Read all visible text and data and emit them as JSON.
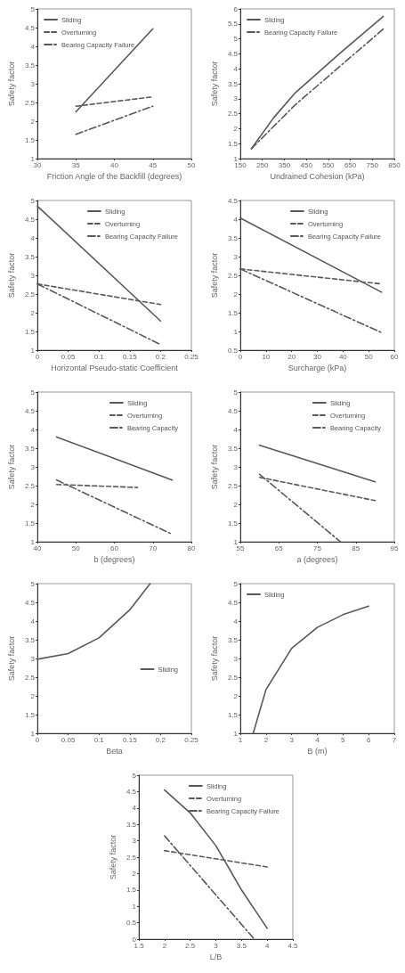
{
  "chart_data": [
    {
      "type": "line",
      "xlabel": "Friction Angle of the Backfill (degrees)",
      "ylabel": "Safety factor",
      "xlim": [
        30,
        50
      ],
      "xticks": [
        30,
        35,
        40,
        45,
        50
      ],
      "ylim": [
        1,
        5
      ],
      "yticks": [
        1,
        1.5,
        2,
        2.5,
        3,
        3.5,
        4,
        4.5,
        5
      ],
      "legend": "top left",
      "grid": false,
      "marker": "none",
      "series": [
        {
          "name": "Sliding",
          "color": "#595959",
          "line_style": "solid",
          "x": [
            35,
            45
          ],
          "values": [
            2.25,
            4.47
          ]
        },
        {
          "name": "Overturning",
          "color": "#595959",
          "line_style": "dashed",
          "x": [
            35,
            45
          ],
          "values": [
            2.4,
            2.65
          ]
        },
        {
          "name": "Bearing Capacity Failure",
          "color": "#595959",
          "line_style": "dotted",
          "x": [
            35,
            45
          ],
          "values": [
            1.65,
            2.4
          ]
        }
      ]
    },
    {
      "type": "line",
      "xlabel": "Undrained Cohesion (kPa)",
      "ylabel": "Safety factor",
      "xlim": [
        150,
        850
      ],
      "xticks": [
        150,
        250,
        350,
        450,
        550,
        650,
        750,
        850
      ],
      "ylim": [
        1,
        6
      ],
      "yticks": [
        1,
        1.5,
        2,
        2.5,
        3,
        3.5,
        4,
        4.5,
        5,
        5.5,
        6
      ],
      "legend": "top left",
      "grid": false,
      "marker": "none",
      "series": [
        {
          "name": "Sliding",
          "color": "#595959",
          "line_style": "solid",
          "x": [
            200,
            300,
            400,
            600,
            800
          ],
          "values": [
            1.33,
            2.35,
            3.2,
            4.5,
            5.75
          ]
        },
        {
          "name": "Bearing Capacity Failure",
          "color": "#595959",
          "line_style": "dotted",
          "x": [
            200,
            400,
            800
          ],
          "values": [
            1.33,
            2.8,
            5.33
          ]
        }
      ]
    },
    {
      "type": "line",
      "xlabel": "Horizontal Pseudo-static Coefficient",
      "ylabel": "Safety factor",
      "xlim": [
        0,
        0.25
      ],
      "xticks": [
        0,
        0.05,
        0.1,
        0.15,
        0.2,
        0.25
      ],
      "ylim": [
        1,
        5
      ],
      "yticks": [
        1,
        1.5,
        2,
        2.5,
        3,
        3.5,
        4,
        4.5,
        5
      ],
      "legend": "top right",
      "grid": false,
      "marker": "none",
      "series": [
        {
          "name": "Sliding",
          "color": "#595959",
          "line_style": "solid",
          "x": [
            0,
            0.2
          ],
          "values": [
            4.85,
            1.78
          ]
        },
        {
          "name": "Overturning",
          "color": "#595959",
          "line_style": "dashed",
          "x": [
            0,
            0.2
          ],
          "values": [
            2.77,
            2.22
          ]
        },
        {
          "name": "Bearing Capacity Failure",
          "color": "#595959",
          "line_style": "dotted",
          "x": [
            0,
            0.2
          ],
          "values": [
            2.77,
            1.15
          ]
        }
      ]
    },
    {
      "type": "line",
      "xlabel": "Surcharge (kPa)",
      "ylabel": "Safety factor",
      "xlim": [
        0,
        60
      ],
      "xticks": [
        0,
        10,
        20,
        30,
        40,
        50,
        60
      ],
      "ylim": [
        0.5,
        4.5
      ],
      "yticks": [
        0.5,
        1,
        1.5,
        2,
        2.5,
        3,
        3.5,
        4,
        4.5
      ],
      "legend": "top right",
      "grid": false,
      "marker": "none",
      "series": [
        {
          "name": "Sliding",
          "color": "#595959",
          "line_style": "solid",
          "x": [
            0,
            55
          ],
          "values": [
            4.03,
            2.05
          ]
        },
        {
          "name": "Overturning",
          "color": "#595959",
          "line_style": "dashed",
          "x": [
            0,
            55
          ],
          "values": [
            2.67,
            2.27
          ]
        },
        {
          "name": "Bearing Capacity Failure",
          "color": "#595959",
          "line_style": "dotted",
          "x": [
            0,
            55
          ],
          "values": [
            2.67,
            0.97
          ]
        }
      ]
    },
    {
      "type": "line",
      "xlabel": "b (degrees)",
      "ylabel": "Safety factor",
      "xlim": [
        40,
        80
      ],
      "xticks": [
        40,
        50,
        60,
        70,
        80
      ],
      "ylim": [
        1,
        5
      ],
      "yticks": [
        1,
        1.5,
        2,
        2.5,
        3,
        3.5,
        4,
        4.5,
        5
      ],
      "legend": "top right",
      "grid": false,
      "marker": "none",
      "series": [
        {
          "name": "Sliding",
          "color": "#595959",
          "line_style": "solid",
          "x": [
            45,
            75
          ],
          "values": [
            3.8,
            2.65
          ]
        },
        {
          "name": "Overturning",
          "color": "#595959",
          "line_style": "dashed",
          "x": [
            45,
            66
          ],
          "values": [
            2.53,
            2.45
          ]
        },
        {
          "name": "Bearing Capacity",
          "color": "#595959",
          "line_style": "dotted",
          "x": [
            45,
            75
          ],
          "values": [
            2.65,
            1.2
          ]
        }
      ]
    },
    {
      "type": "line",
      "xlabel": "a (degrees)",
      "ylabel": "Safety factor",
      "xlim": [
        55,
        95
      ],
      "xticks": [
        55,
        65,
        75,
        85,
        95
      ],
      "ylim": [
        1,
        5
      ],
      "yticks": [
        1,
        1.5,
        2,
        2.5,
        3,
        3.5,
        4,
        4.5,
        5
      ],
      "legend": "top right",
      "grid": false,
      "marker": "none",
      "series": [
        {
          "name": "Sliding",
          "color": "#595959",
          "line_style": "solid",
          "x": [
            60,
            90
          ],
          "values": [
            3.58,
            2.6
          ]
        },
        {
          "name": "Overturning",
          "color": "#595959",
          "line_style": "dashed",
          "x": [
            60,
            90
          ],
          "values": [
            2.72,
            2.1
          ]
        },
        {
          "name": "Bearing Capacity",
          "color": "#595959",
          "line_style": "dotted",
          "x": [
            60,
            81
          ],
          "values": [
            2.8,
            1.0
          ]
        }
      ]
    },
    {
      "type": "line",
      "xlabel": "Beta",
      "ylabel": "Safety factor",
      "xlim": [
        0,
        0.25
      ],
      "xticks": [
        0,
        0.05,
        0.1,
        0.15,
        0.2,
        0.25
      ],
      "ylim": [
        1,
        5
      ],
      "yticks": [
        1,
        1.5,
        2,
        2.5,
        3,
        3.5,
        4,
        4.5,
        5
      ],
      "legend": "right",
      "grid": false,
      "marker": "none",
      "series": [
        {
          "name": "Sliding",
          "color": "#595959",
          "line_style": "solid",
          "x": [
            0,
            0.05,
            0.1,
            0.15,
            0.183
          ],
          "values": [
            2.98,
            3.13,
            3.55,
            4.3,
            5
          ]
        }
      ]
    },
    {
      "type": "line",
      "xlabel": "B (m)",
      "ylabel": "Safety factor",
      "xlim": [
        1,
        7
      ],
      "xticks": [
        1,
        2,
        3,
        4,
        5,
        6,
        7
      ],
      "ylim": [
        1,
        5
      ],
      "yticks": [
        1,
        1.5,
        2,
        2.5,
        3,
        3.5,
        4,
        4.5,
        5
      ],
      "legend": "top left",
      "grid": false,
      "marker": "none",
      "series": [
        {
          "name": "Sliding",
          "color": "#595959",
          "line_style": "solid",
          "x": [
            1.5,
            2,
            3,
            4,
            5,
            6
          ],
          "values": [
            1,
            2.17,
            3.27,
            3.83,
            4.17,
            4.4
          ]
        }
      ]
    },
    {
      "type": "line",
      "xlabel": "L/B",
      "ylabel": "Safety factor",
      "xlim": [
        1.5,
        4.5
      ],
      "xticks": [
        1.5,
        2,
        2.5,
        3,
        3.5,
        4,
        4.5
      ],
      "ylim": [
        0,
        5
      ],
      "yticks": [
        0,
        0.5,
        1,
        1.5,
        2,
        2.5,
        3,
        3.5,
        4,
        4.5,
        5
      ],
      "legend": "top right",
      "grid": false,
      "marker": "none",
      "series": [
        {
          "name": "Sliding",
          "color": "#595959",
          "line_style": "solid",
          "x": [
            2,
            2.5,
            3,
            3.5,
            4
          ],
          "values": [
            4.55,
            3.85,
            2.85,
            1.5,
            0.33
          ]
        },
        {
          "name": "Overturning",
          "color": "#595959",
          "line_style": "dashed",
          "x": [
            2,
            4
          ],
          "values": [
            2.7,
            2.2
          ]
        },
        {
          "name": "Bearing Capacity Failure",
          "color": "#595959",
          "line_style": "dotted",
          "x": [
            2,
            3.75
          ],
          "values": [
            3.15,
            0
          ]
        }
      ]
    }
  ]
}
